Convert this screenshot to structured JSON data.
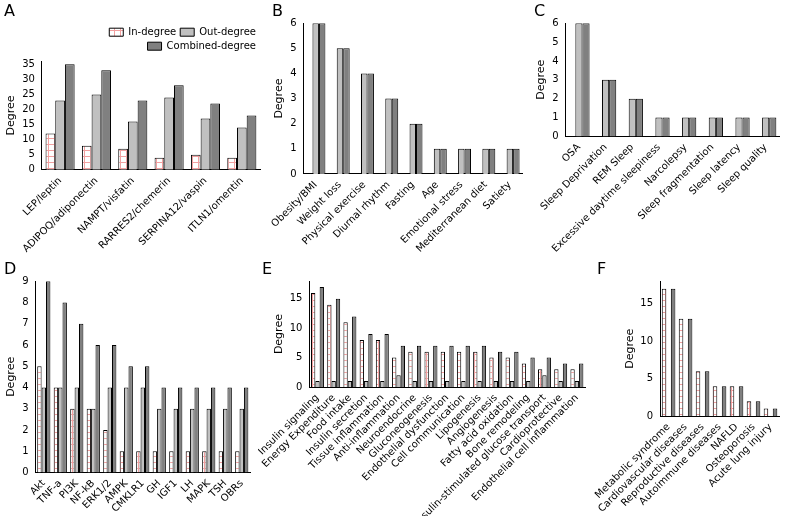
{
  "chart_data": [
    {
      "type": "bar",
      "title": "A",
      "ylabel": "Degree",
      "categories": [
        "LEP/leptin",
        "ADIPOQ/adiponectin",
        "NAMPT/visfatin",
        "RARRES2/chemerin",
        "SERPINA12/vaspin",
        "ITLN1/omentin"
      ],
      "series": [
        {
          "name": "In-degree",
          "color": "#ffffff",
          "values": [
            12,
            8,
            7,
            4,
            5,
            4
          ]
        },
        {
          "name": "Out-degree",
          "color": "#c0c0c0",
          "values": [
            23,
            25,
            16,
            24,
            17,
            14
          ]
        },
        {
          "name": "Combined-degree",
          "color": "#808080",
          "values": [
            35,
            33,
            23,
            28,
            22,
            18
          ]
        }
      ],
      "ylim": [
        0,
        36
      ],
      "yticks": [
        0,
        5,
        10,
        15,
        20,
        25,
        30,
        35
      ],
      "grid": false,
      "legend": "top"
    },
    {
      "type": "bar",
      "title": "B",
      "ylabel": "Degree",
      "categories": [
        "Obesity/BMI",
        "Weight loss",
        "Physical exercise",
        "Diurnal rhythm",
        "Fasting",
        "Age",
        "Emotional stress",
        "Mediterranean diet",
        "Satiety"
      ],
      "series": [
        {
          "color": "#ffffff",
          "values": [
            0,
            0,
            0,
            0,
            0,
            0,
            0,
            0,
            0
          ]
        },
        {
          "color": "#c0c0c0",
          "values": [
            6,
            5,
            4,
            3,
            2,
            1,
            1,
            1,
            1
          ]
        },
        {
          "color": "#808080",
          "values": [
            6,
            5,
            4,
            3,
            2,
            1,
            1,
            1,
            1
          ]
        }
      ],
      "ylim": [
        0,
        6
      ],
      "yticks": [
        0,
        1,
        2,
        3,
        4,
        5,
        6
      ],
      "grid": false
    },
    {
      "type": "bar",
      "title": "C",
      "ylabel": "Degree",
      "categories": [
        "OSA",
        "Sleep Deprivation",
        "REM Sleep",
        "Excessive daytime sleepiness",
        "Narcolepsy",
        "Sleep fragmentation",
        "Sleep latency",
        "Sleep quality"
      ],
      "series": [
        {
          "color": "#ffffff",
          "values": [
            0,
            0,
            0,
            0,
            0,
            0,
            0,
            0
          ]
        },
        {
          "color": "#c0c0c0",
          "values": [
            6,
            3,
            2,
            1,
            1,
            1,
            1,
            1
          ]
        },
        {
          "color": "#808080",
          "values": [
            6,
            3,
            2,
            1,
            1,
            1,
            1,
            1
          ]
        }
      ],
      "ylim": [
        0,
        6
      ],
      "yticks": [
        0,
        1,
        2,
        3,
        4,
        5,
        6
      ],
      "grid": false
    },
    {
      "type": "bar",
      "title": "D",
      "ylabel": "Degree",
      "categories": [
        "Akt",
        "TNF-a",
        "PI3K",
        "NF-kB",
        "ERK1/2",
        "AMPK",
        "CMKLR1",
        "GH",
        "IGF1",
        "LH",
        "MAPK",
        "TSH",
        "OBRs"
      ],
      "series": [
        {
          "color": "#ffffff",
          "values": [
            5,
            4,
            3,
            3,
            2,
            1,
            1,
            1,
            1,
            1,
            1,
            1,
            1
          ]
        },
        {
          "color": "#c0c0c0",
          "values": [
            4,
            4,
            4,
            3,
            4,
            4,
            4,
            3,
            3,
            3,
            3,
            3,
            3
          ]
        },
        {
          "color": "#808080",
          "values": [
            9,
            8,
            7,
            6,
            6,
            5,
            5,
            4,
            4,
            4,
            4,
            4,
            4
          ]
        }
      ],
      "ylim": [
        0,
        9
      ],
      "yticks": [
        0,
        1,
        2,
        3,
        4,
        5,
        6,
        7,
        8,
        9
      ],
      "grid": false
    },
    {
      "type": "bar",
      "title": "E",
      "ylabel": "Degree",
      "categories": [
        "Insulin signaling",
        "Energy Expenditure",
        "Food intake",
        "Insulin secretion",
        "Tissue inflammation",
        "Anti-inflammation",
        "Neuroendocrine",
        "Gluconeogenesis",
        "Endothelial dysfunction",
        "Cell communication",
        "Lipogenesis",
        "Angiogenesis",
        "Fatty acid oxidation",
        "Bone remodeling",
        "Insulin-stimulated glucose transport",
        "Cardioprotective",
        "Endothelial cell inflammation"
      ],
      "series": [
        {
          "color": "#ffffff",
          "values": [
            16,
            14,
            11,
            8,
            8,
            5,
            6,
            6,
            6,
            6,
            6,
            5,
            5,
            4,
            3,
            3,
            3
          ]
        },
        {
          "color": "#c0c0c0",
          "values": [
            1,
            1,
            1,
            1,
            1,
            2,
            1,
            1,
            1,
            1,
            1,
            1,
            1,
            1,
            2,
            1,
            1
          ]
        },
        {
          "color": "#808080",
          "values": [
            17,
            15,
            12,
            9,
            9,
            7,
            7,
            7,
            7,
            7,
            7,
            6,
            6,
            5,
            5,
            4,
            4
          ]
        }
      ],
      "ylim": [
        0,
        18
      ],
      "yticks": [
        0,
        5,
        10,
        15
      ],
      "grid": false
    },
    {
      "type": "bar",
      "title": "F",
      "ylabel": "Degree",
      "categories": [
        "Metabolic syndrome",
        "Cardiovascular diseases",
        "Reproductive diseases",
        "Autoimmune diseases",
        "NAFLD",
        "Osteoporosis",
        "Acute lung injury"
      ],
      "series": [
        {
          "color": "#ffffff",
          "values": [
            17,
            13,
            6,
            4,
            4,
            2,
            1
          ]
        },
        {
          "color": "#c0c0c0",
          "values": [
            0,
            0,
            0,
            0,
            0,
            0,
            0
          ]
        },
        {
          "color": "#808080",
          "values": [
            17,
            13,
            6,
            4,
            4,
            2,
            1
          ]
        }
      ],
      "ylim": [
        0,
        18
      ],
      "yticks": [
        0,
        5,
        10,
        15
      ],
      "grid": false
    }
  ]
}
